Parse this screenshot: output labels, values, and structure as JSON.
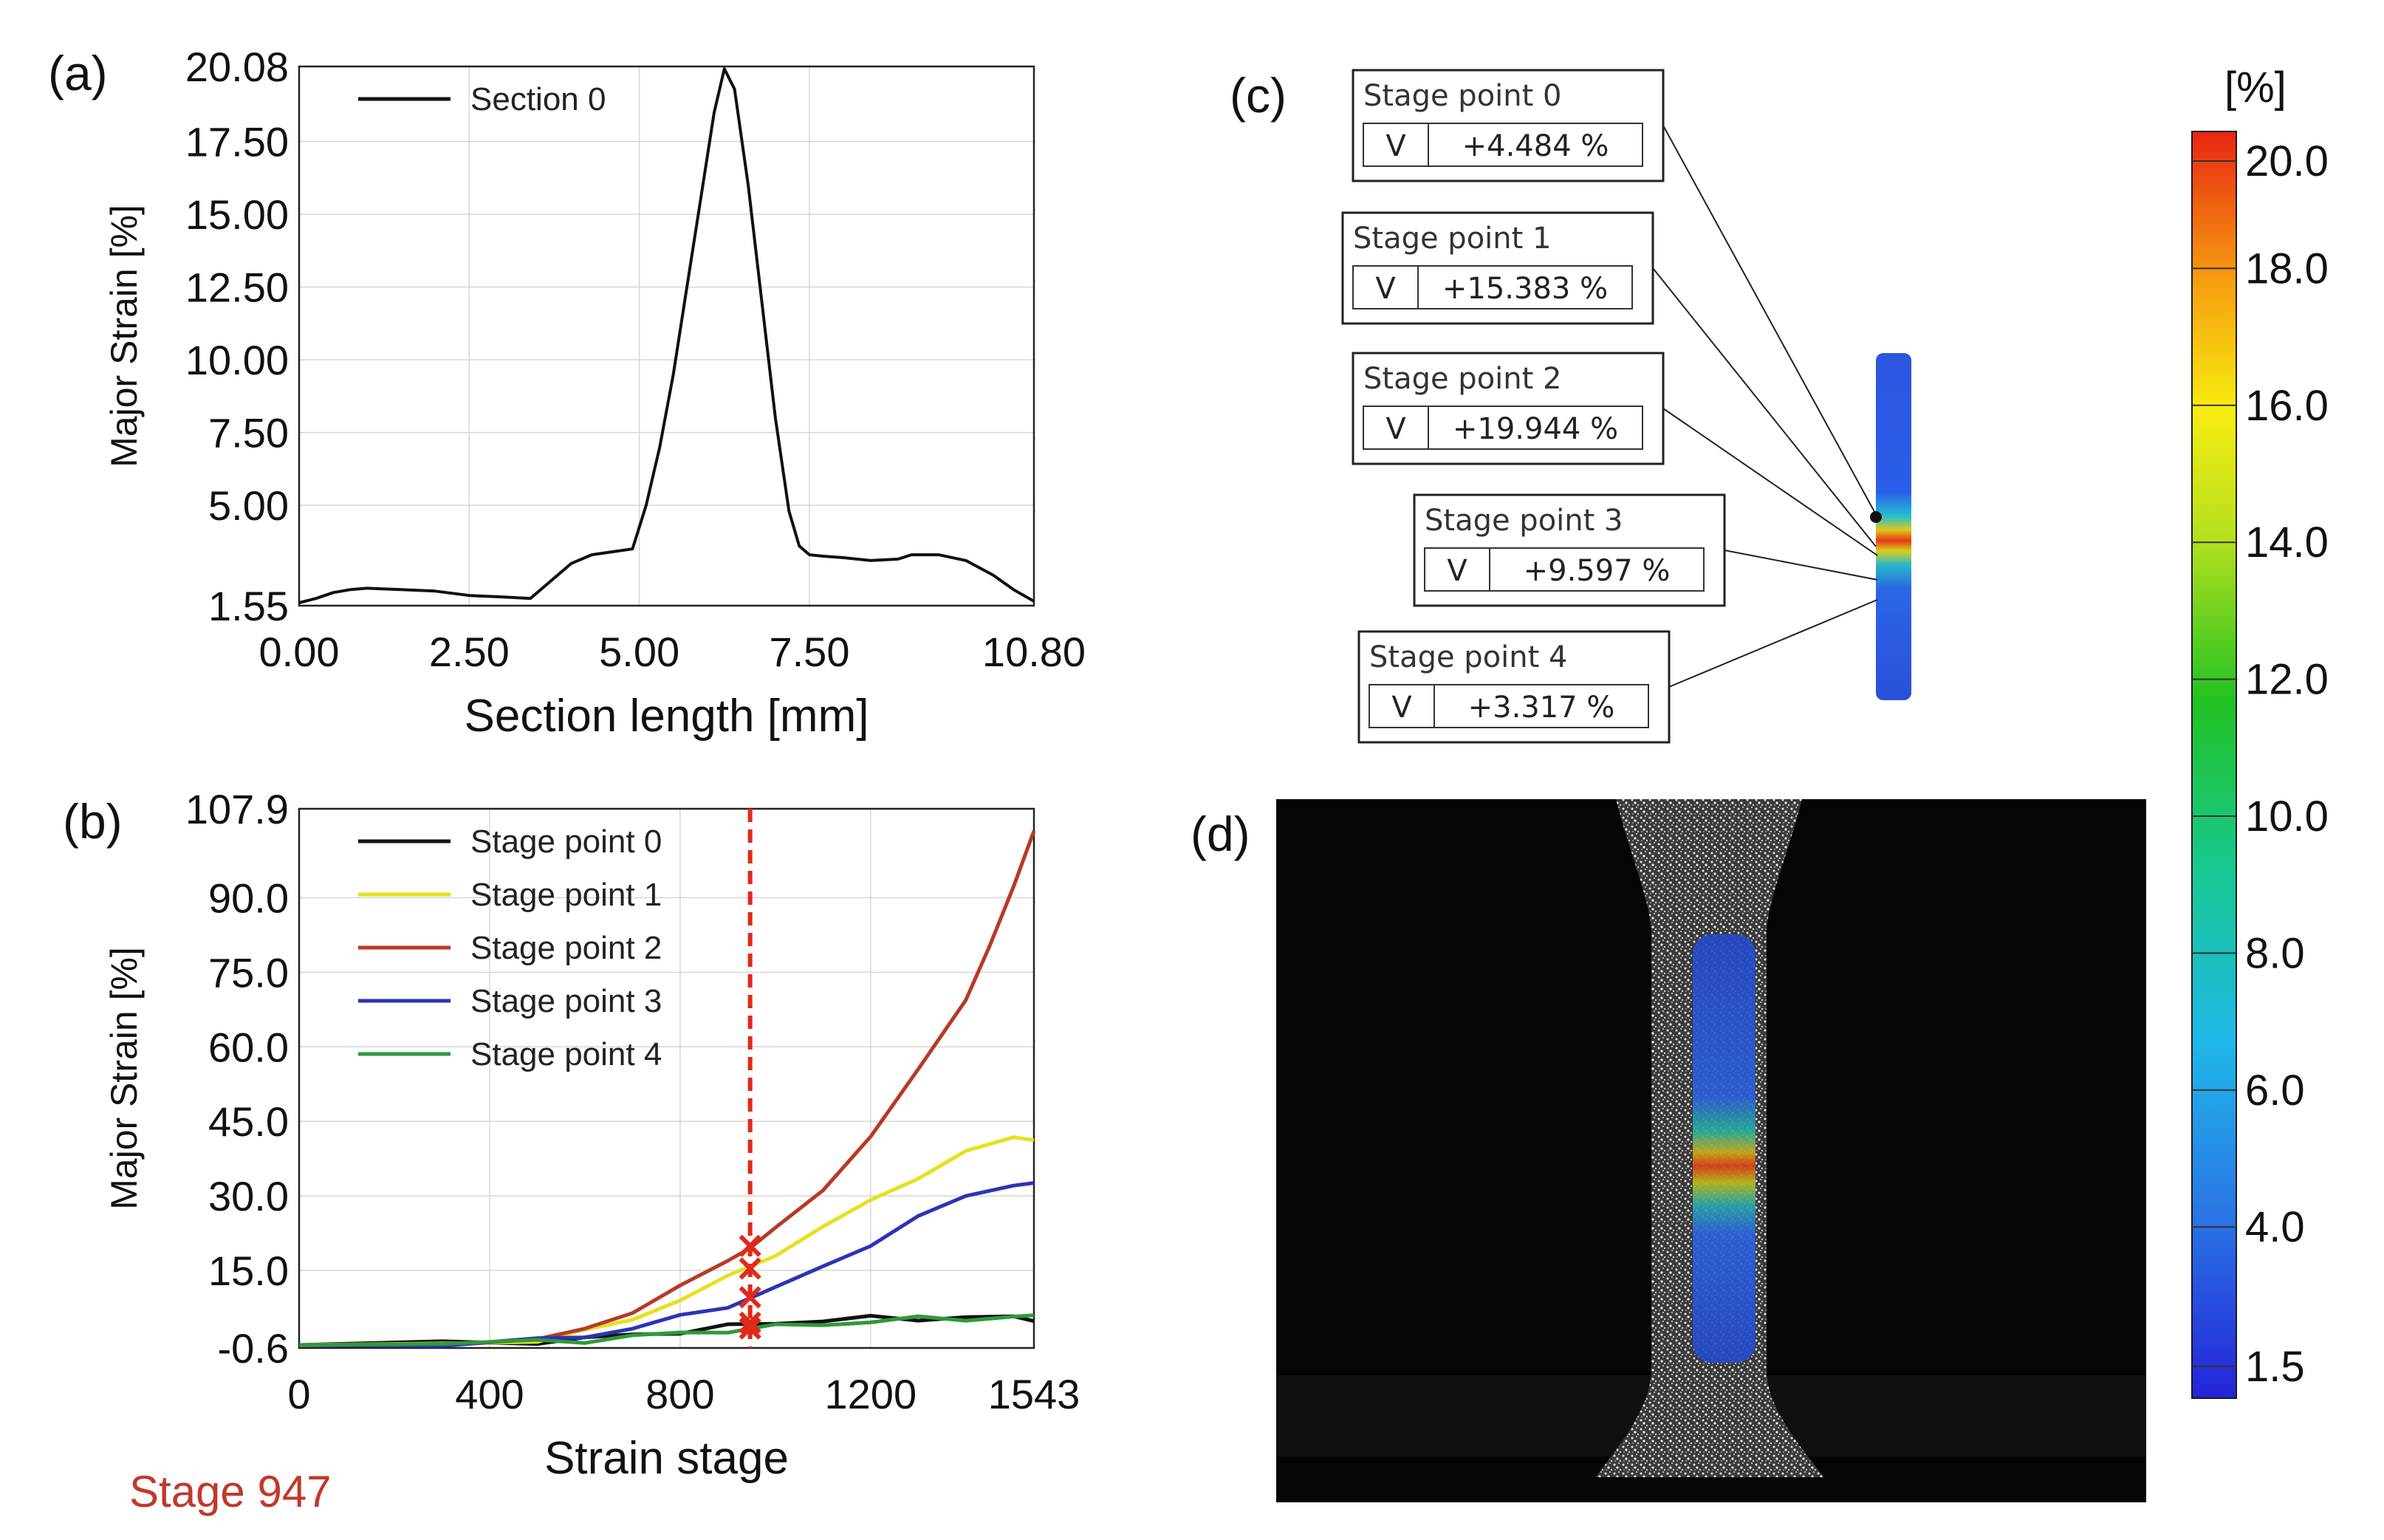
{
  "panels": {
    "a": "(a)",
    "b": "(b)",
    "c": "(c)",
    "d": "(d)"
  },
  "chart_data": [
    {
      "id": "a",
      "type": "line",
      "title": "",
      "xlabel": "Section length [mm]",
      "ylabel": "Major Strain [%]",
      "xlim": [
        0,
        10.8
      ],
      "ylim": [
        1.55,
        20.08
      ],
      "xticks": [
        "0.00",
        "2.50",
        "5.00",
        "7.50",
        "10.80"
      ],
      "xtick_values": [
        0,
        2.5,
        5.0,
        7.5,
        10.8
      ],
      "yticks": [
        "1.55",
        "5.00",
        "7.50",
        "10.00",
        "12.50",
        "15.00",
        "17.50",
        "20.08"
      ],
      "ytick_values": [
        1.55,
        5.0,
        7.5,
        10.0,
        12.5,
        15.0,
        17.5,
        20.08
      ],
      "legend": "top-left",
      "series": [
        {
          "name": "Section 0",
          "color": "#111111",
          "x": [
            0,
            0.25,
            0.5,
            0.75,
            1.0,
            1.5,
            2.0,
            2.5,
            3.0,
            3.4,
            3.6,
            3.8,
            4.0,
            4.3,
            4.6,
            4.9,
            5.1,
            5.3,
            5.5,
            5.7,
            5.9,
            6.1,
            6.25,
            6.4,
            6.6,
            6.8,
            7.0,
            7.2,
            7.35,
            7.5,
            7.7,
            8.0,
            8.4,
            8.8,
            9.0,
            9.4,
            9.8,
            10.2,
            10.5,
            10.8
          ],
          "y": [
            1.65,
            1.8,
            2.0,
            2.1,
            2.15,
            2.1,
            2.05,
            1.9,
            1.85,
            1.8,
            2.2,
            2.6,
            3.0,
            3.3,
            3.4,
            3.5,
            5.0,
            7.0,
            9.5,
            12.5,
            15.5,
            18.5,
            20.0,
            19.3,
            16.0,
            12.0,
            8.0,
            4.8,
            3.6,
            3.3,
            3.25,
            3.2,
            3.1,
            3.15,
            3.3,
            3.3,
            3.1,
            2.6,
            2.1,
            1.7
          ]
        }
      ]
    },
    {
      "id": "b",
      "type": "line",
      "title": "",
      "xlabel": "Strain stage",
      "ylabel": "Major Strain [%]",
      "xlim": [
        0,
        1543
      ],
      "ylim": [
        -0.6,
        107.9
      ],
      "xticks": [
        "0",
        "400",
        "800",
        "1200",
        "1543"
      ],
      "xtick_values": [
        0,
        400,
        800,
        1200,
        1543
      ],
      "yticks": [
        "-0.6",
        "15.0",
        "30.0",
        "45.0",
        "60.0",
        "75.0",
        "90.0",
        "107.9"
      ],
      "ytick_values": [
        -0.6,
        15.0,
        30.0,
        45.0,
        60.0,
        75.0,
        90.0,
        107.9
      ],
      "legend": "top-left",
      "marker_stage": 947,
      "marker_label": "Stage 947",
      "marker_values": [
        4.484,
        15.383,
        19.944,
        9.597,
        3.317
      ],
      "series": [
        {
          "name": "Stage point 0",
          "color": "#111111",
          "x": [
            0,
            300,
            500,
            600,
            700,
            800,
            900,
            1000,
            1100,
            1200,
            1300,
            1400,
            1500,
            1543
          ],
          "y": [
            0,
            0.3,
            0.8,
            1.2,
            2.0,
            2.8,
            3.6,
            4.5,
            5.0,
            5.3,
            5.4,
            5.5,
            5.4,
            5.4
          ]
        },
        {
          "name": "Stage point 1",
          "color": "#e6e01e",
          "x": [
            0,
            300,
            500,
            600,
            700,
            800,
            900,
            1000,
            1100,
            1200,
            1300,
            1400,
            1500,
            1543
          ],
          "y": [
            0,
            0.4,
            1.0,
            2.5,
            5.5,
            9.0,
            13.5,
            18.5,
            23.5,
            29.0,
            34.0,
            38.5,
            42.0,
            41.5
          ]
        },
        {
          "name": "Stage point 2",
          "color": "#b83a26",
          "x": [
            0,
            300,
            500,
            600,
            700,
            800,
            900,
            947,
            1000,
            1100,
            1200,
            1300,
            1400,
            1450,
            1500,
            1543
          ],
          "y": [
            0,
            0.4,
            1.0,
            3.0,
            7.0,
            11.5,
            17.0,
            19.9,
            23.0,
            31.5,
            42.0,
            55.0,
            70.0,
            80.0,
            92.0,
            104.0
          ]
        },
        {
          "name": "Stage point 3",
          "color": "#2b34b5",
          "x": [
            0,
            300,
            500,
            600,
            700,
            800,
            900,
            1000,
            1100,
            1200,
            1300,
            1400,
            1500,
            1543
          ],
          "y": [
            0,
            0.3,
            0.8,
            1.8,
            3.5,
            5.5,
            8.0,
            11.5,
            15.5,
            20.5,
            25.5,
            30.0,
            32.5,
            32.0
          ]
        },
        {
          "name": "Stage point 4",
          "color": "#2e9a3a",
          "x": [
            0,
            300,
            500,
            600,
            700,
            800,
            900,
            1000,
            1100,
            1200,
            1300,
            1400,
            1500,
            1543
          ],
          "y": [
            0,
            0.2,
            0.6,
            1.0,
            1.6,
            2.4,
            3.0,
            3.6,
            4.2,
            4.8,
            5.2,
            5.4,
            5.6,
            5.6
          ]
        }
      ]
    },
    {
      "id": "c-colorbar",
      "type": "heatmap",
      "title": "[%]",
      "ticks": [
        "20.0",
        "18.0",
        "16.0",
        "14.0",
        "12.0",
        "10.0",
        "8.0",
        "6.0",
        "4.0",
        "1.5"
      ],
      "tick_values": [
        20.0,
        18.0,
        16.0,
        14.0,
        12.0,
        10.0,
        8.0,
        6.0,
        4.0,
        1.5
      ],
      "range": [
        1.5,
        20.0
      ]
    }
  ],
  "stage_points": [
    {
      "title": "Stage point 0",
      "component": "V",
      "value": "+4.484 %"
    },
    {
      "title": "Stage point 1",
      "component": "V",
      "value": "+15.383 %"
    },
    {
      "title": "Stage point 2",
      "component": "V",
      "value": "+19.944 %"
    },
    {
      "title": "Stage point 3",
      "component": "V",
      "value": "+9.597 %"
    },
    {
      "title": "Stage point 4",
      "component": "V",
      "value": "+3.317 %"
    }
  ],
  "colors": {
    "marker": "#e02a1a",
    "stage_label": "#c0392b"
  }
}
